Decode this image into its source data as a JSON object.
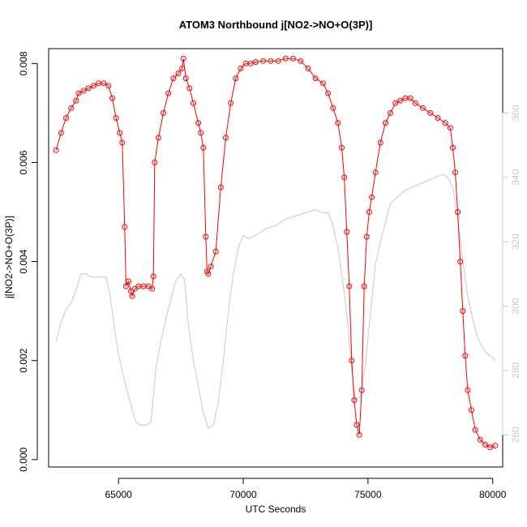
{
  "chart_data": {
    "type": "scatter",
    "title": "ATOM3 Northbound j[NO2->NO+O(3P)]",
    "xlabel": "UTC Seconds",
    "ylabel": "j[NO2->NO+O(3P)]",
    "xlim": [
      62200,
      80400
    ],
    "ylim": [
      -0.00015,
      0.0083
    ],
    "xticks": [
      65000,
      70000,
      75000,
      80000
    ],
    "yticks": [
      0.0,
      0.002,
      0.004,
      0.006,
      0.008
    ],
    "xtick_labels": [
      "65000",
      "70000",
      "75000",
      "80000"
    ],
    "ytick_labels": [
      "0.000",
      "0.002",
      "0.004",
      "0.006",
      "0.008"
    ],
    "y2lim": [
      250,
      380
    ],
    "y2ticks": [
      260,
      280,
      300,
      320,
      340,
      360
    ],
    "y2tick_labels": [
      "260",
      "280",
      "300",
      "320",
      "340",
      "360"
    ],
    "colors": {
      "primary": "#ff0000",
      "secondary": "#c8c8c8"
    },
    "series": [
      {
        "axis": "left",
        "style": "points-and-lines",
        "x": [
          62500,
          62700,
          62900,
          63100,
          63300,
          63400,
          63600,
          63800,
          64000,
          64200,
          64400,
          64600,
          64750,
          64900,
          65050,
          65150,
          65250,
          65300,
          65400,
          65500,
          65550,
          65650,
          65800,
          66000,
          66200,
          66350,
          66400,
          66450,
          66600,
          66800,
          67000,
          67200,
          67400,
          67550,
          67600,
          67700,
          67850,
          68000,
          68200,
          68300,
          68400,
          68500,
          68550,
          68600,
          68700,
          68900,
          69100,
          69300,
          69500,
          69700,
          69900,
          70100,
          70300,
          70500,
          70800,
          71100,
          71400,
          71700,
          72000,
          72300,
          72600,
          72900,
          73200,
          73400,
          73600,
          73800,
          73950,
          74050,
          74150,
          74250,
          74350,
          74450,
          74550,
          74650,
          74750,
          74850,
          74950,
          75050,
          75150,
          75300,
          75500,
          75700,
          75900,
          76100,
          76300,
          76500,
          76700,
          76900,
          77200,
          77500,
          77800,
          78100,
          78300,
          78400,
          78500,
          78600,
          78700,
          78800,
          78900,
          79000,
          79150,
          79300,
          79500,
          79700,
          79900,
          80100
        ],
        "y": [
          0.00625,
          0.0066,
          0.0069,
          0.0071,
          0.00725,
          0.0074,
          0.00745,
          0.0075,
          0.00755,
          0.0076,
          0.0076,
          0.00755,
          0.0073,
          0.0069,
          0.0066,
          0.0064,
          0.0047,
          0.0035,
          0.0036,
          0.0034,
          0.0033,
          0.00345,
          0.0035,
          0.0035,
          0.0035,
          0.00345,
          0.0037,
          0.006,
          0.0065,
          0.007,
          0.0074,
          0.0077,
          0.0078,
          0.0079,
          0.0081,
          0.0077,
          0.0075,
          0.0072,
          0.0068,
          0.0066,
          0.0063,
          0.0045,
          0.0038,
          0.00375,
          0.0039,
          0.0042,
          0.0055,
          0.0065,
          0.0072,
          0.0077,
          0.0079,
          0.008,
          0.008,
          0.00803,
          0.00805,
          0.00805,
          0.00805,
          0.0081,
          0.0081,
          0.00805,
          0.0079,
          0.0077,
          0.0076,
          0.0074,
          0.0071,
          0.0068,
          0.0063,
          0.0057,
          0.0046,
          0.0035,
          0.002,
          0.0012,
          0.0007,
          0.0005,
          0.0014,
          0.0035,
          0.0045,
          0.005,
          0.0053,
          0.0058,
          0.0064,
          0.0068,
          0.007,
          0.0072,
          0.00725,
          0.0073,
          0.0073,
          0.0072,
          0.0071,
          0.007,
          0.0069,
          0.0068,
          0.0067,
          0.0063,
          0.0058,
          0.005,
          0.004,
          0.003,
          0.0021,
          0.0014,
          0.001,
          0.0006,
          0.0004,
          0.0003,
          0.00025,
          0.00028
        ]
      },
      {
        "axis": "right",
        "style": "line",
        "x": [
          62500,
          62700,
          62900,
          63100,
          63300,
          63500,
          63700,
          63900,
          64100,
          64300,
          64500,
          64650,
          64800,
          65000,
          65200,
          65400,
          65550,
          65700,
          65900,
          66100,
          66300,
          66400,
          66500,
          66700,
          66900,
          67100,
          67300,
          67500,
          67650,
          67800,
          68000,
          68200,
          68400,
          68600,
          68800,
          69000,
          69200,
          69400,
          69600,
          69800,
          70000,
          70200,
          70500,
          70900,
          71300,
          71700,
          72100,
          72500,
          72900,
          73200,
          73400,
          73600,
          73800,
          74000,
          74200,
          74350,
          74500,
          74700,
          74900,
          75100,
          75300,
          75500,
          75700,
          75900,
          76200,
          76500,
          76800,
          77100,
          77400,
          77700,
          78000,
          78200,
          78400,
          78600,
          78800,
          79000,
          79200,
          79400,
          79600,
          79800,
          80000,
          80100
        ],
        "y": [
          289,
          295,
          299,
          301,
          305,
          310,
          310,
          309,
          309,
          309,
          309,
          304,
          295,
          285,
          278,
          272,
          268,
          264,
          263,
          263,
          264,
          272,
          281,
          289,
          296,
          302,
          308,
          310,
          308,
          294,
          283,
          275,
          267,
          262,
          263,
          270,
          283,
          298,
          310,
          318,
          322,
          321,
          322,
          324,
          325,
          327,
          328,
          329,
          330,
          329,
          329,
          325,
          318,
          307,
          294,
          280,
          271,
          272,
          282,
          298,
          313,
          320,
          326,
          332,
          334,
          336,
          337,
          338,
          339,
          340,
          341,
          340,
          337,
          327,
          314,
          303,
          296,
          290,
          287,
          285,
          284,
          283
        ]
      }
    ]
  }
}
